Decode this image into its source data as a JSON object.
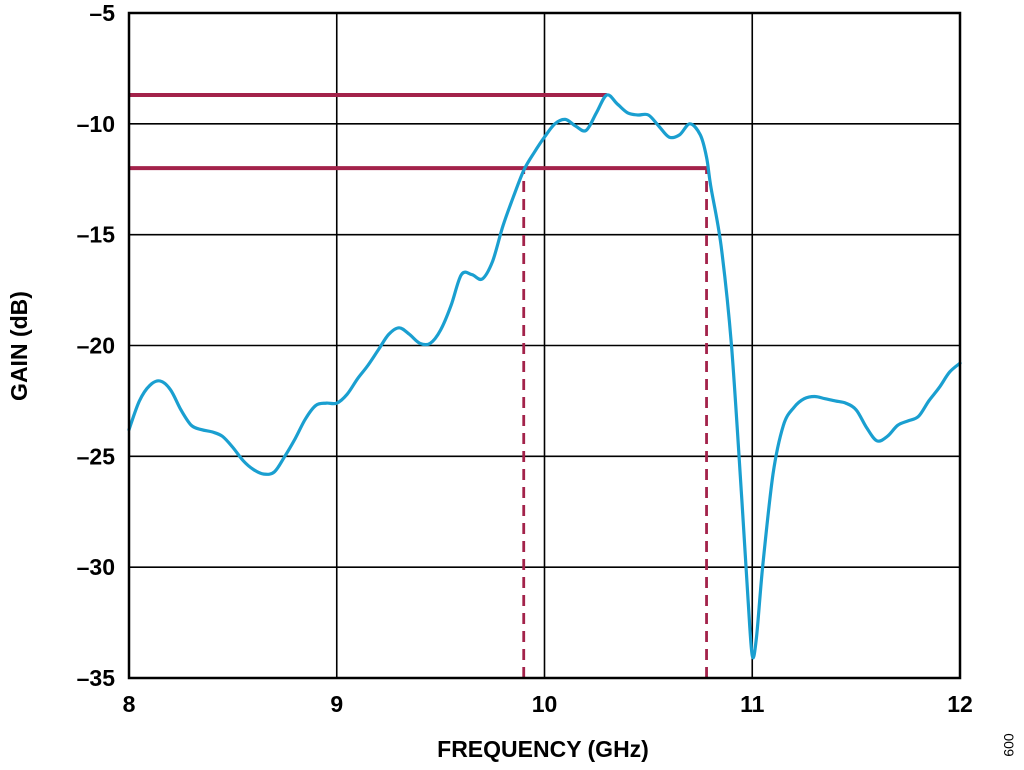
{
  "chart_data": {
    "type": "line",
    "xlabel": "FREQUENCY (GHz)",
    "ylabel": "GAIN (dB)",
    "xlim": [
      8,
      12
    ],
    "ylim": [
      -35,
      -5
    ],
    "xticks": [
      8,
      9,
      10,
      11,
      12
    ],
    "yticks": [
      -5,
      -10,
      -15,
      -20,
      -25,
      -30,
      -35
    ],
    "xtick_labels": [
      "8",
      "9",
      "10",
      "11",
      "12"
    ],
    "ytick_labels": [
      "–5",
      "–10",
      "–15",
      "–20",
      "–25",
      "–30",
      "–35"
    ],
    "grid": true,
    "colors": {
      "series": "#1a9fd0",
      "markers": "#a3224a",
      "grid": "#000000"
    },
    "series": [
      {
        "x": [
          8.0,
          8.05,
          8.1,
          8.15,
          8.2,
          8.25,
          8.3,
          8.35,
          8.4,
          8.45,
          8.5,
          8.55,
          8.6,
          8.65,
          8.7,
          8.75,
          8.8,
          8.85,
          8.9,
          8.95,
          9.0,
          9.05,
          9.1,
          9.15,
          9.2,
          9.25,
          9.3,
          9.35,
          9.4,
          9.45,
          9.5,
          9.55,
          9.6,
          9.65,
          9.7,
          9.75,
          9.8,
          9.85,
          9.9,
          9.95,
          10.0,
          10.05,
          10.1,
          10.15,
          10.2,
          10.25,
          10.3,
          10.35,
          10.4,
          10.45,
          10.5,
          10.55,
          10.6,
          10.65,
          10.7,
          10.75,
          10.78,
          10.8,
          10.85,
          10.9,
          10.95,
          10.98,
          11.0,
          11.02,
          11.05,
          11.1,
          11.15,
          11.2,
          11.25,
          11.3,
          11.35,
          11.4,
          11.45,
          11.5,
          11.55,
          11.6,
          11.65,
          11.7,
          11.75,
          11.8,
          11.85,
          11.9,
          11.95,
          12.0
        ],
        "y": [
          -23.8,
          -22.5,
          -21.8,
          -21.6,
          -22.0,
          -22.9,
          -23.6,
          -23.8,
          -23.9,
          -24.1,
          -24.6,
          -25.2,
          -25.6,
          -25.8,
          -25.7,
          -25.0,
          -24.2,
          -23.3,
          -22.7,
          -22.6,
          -22.6,
          -22.2,
          -21.5,
          -20.9,
          -20.2,
          -19.5,
          -19.2,
          -19.5,
          -19.9,
          -19.9,
          -19.3,
          -18.2,
          -16.8,
          -16.8,
          -17.0,
          -16.2,
          -14.6,
          -13.3,
          -12.1,
          -11.3,
          -10.6,
          -10.0,
          -9.8,
          -10.1,
          -10.3,
          -9.5,
          -8.7,
          -9.1,
          -9.5,
          -9.6,
          -9.6,
          -10.1,
          -10.6,
          -10.5,
          -10.0,
          -10.5,
          -11.5,
          -12.8,
          -15.5,
          -20.0,
          -27.0,
          -31.5,
          -34.0,
          -33.2,
          -30.0,
          -25.8,
          -23.6,
          -22.8,
          -22.4,
          -22.3,
          -22.4,
          -22.5,
          -22.6,
          -22.9,
          -23.7,
          -24.3,
          -24.1,
          -23.6,
          -23.4,
          -23.2,
          -22.5,
          -21.9,
          -21.2,
          -20.8
        ]
      }
    ],
    "annotations": [
      {
        "type": "hline",
        "y": -8.7,
        "x_from": 8,
        "x_to": 10.3
      },
      {
        "type": "hline",
        "y": -12.0,
        "x_from": 8,
        "x_to": 10.78
      },
      {
        "type": "vline-dashed",
        "x": 9.9,
        "y_from": -35,
        "y_to": -12.0
      },
      {
        "type": "vline-dashed",
        "x": 10.78,
        "y_from": -35,
        "y_to": -12.0
      }
    ]
  },
  "figure_id": "009"
}
